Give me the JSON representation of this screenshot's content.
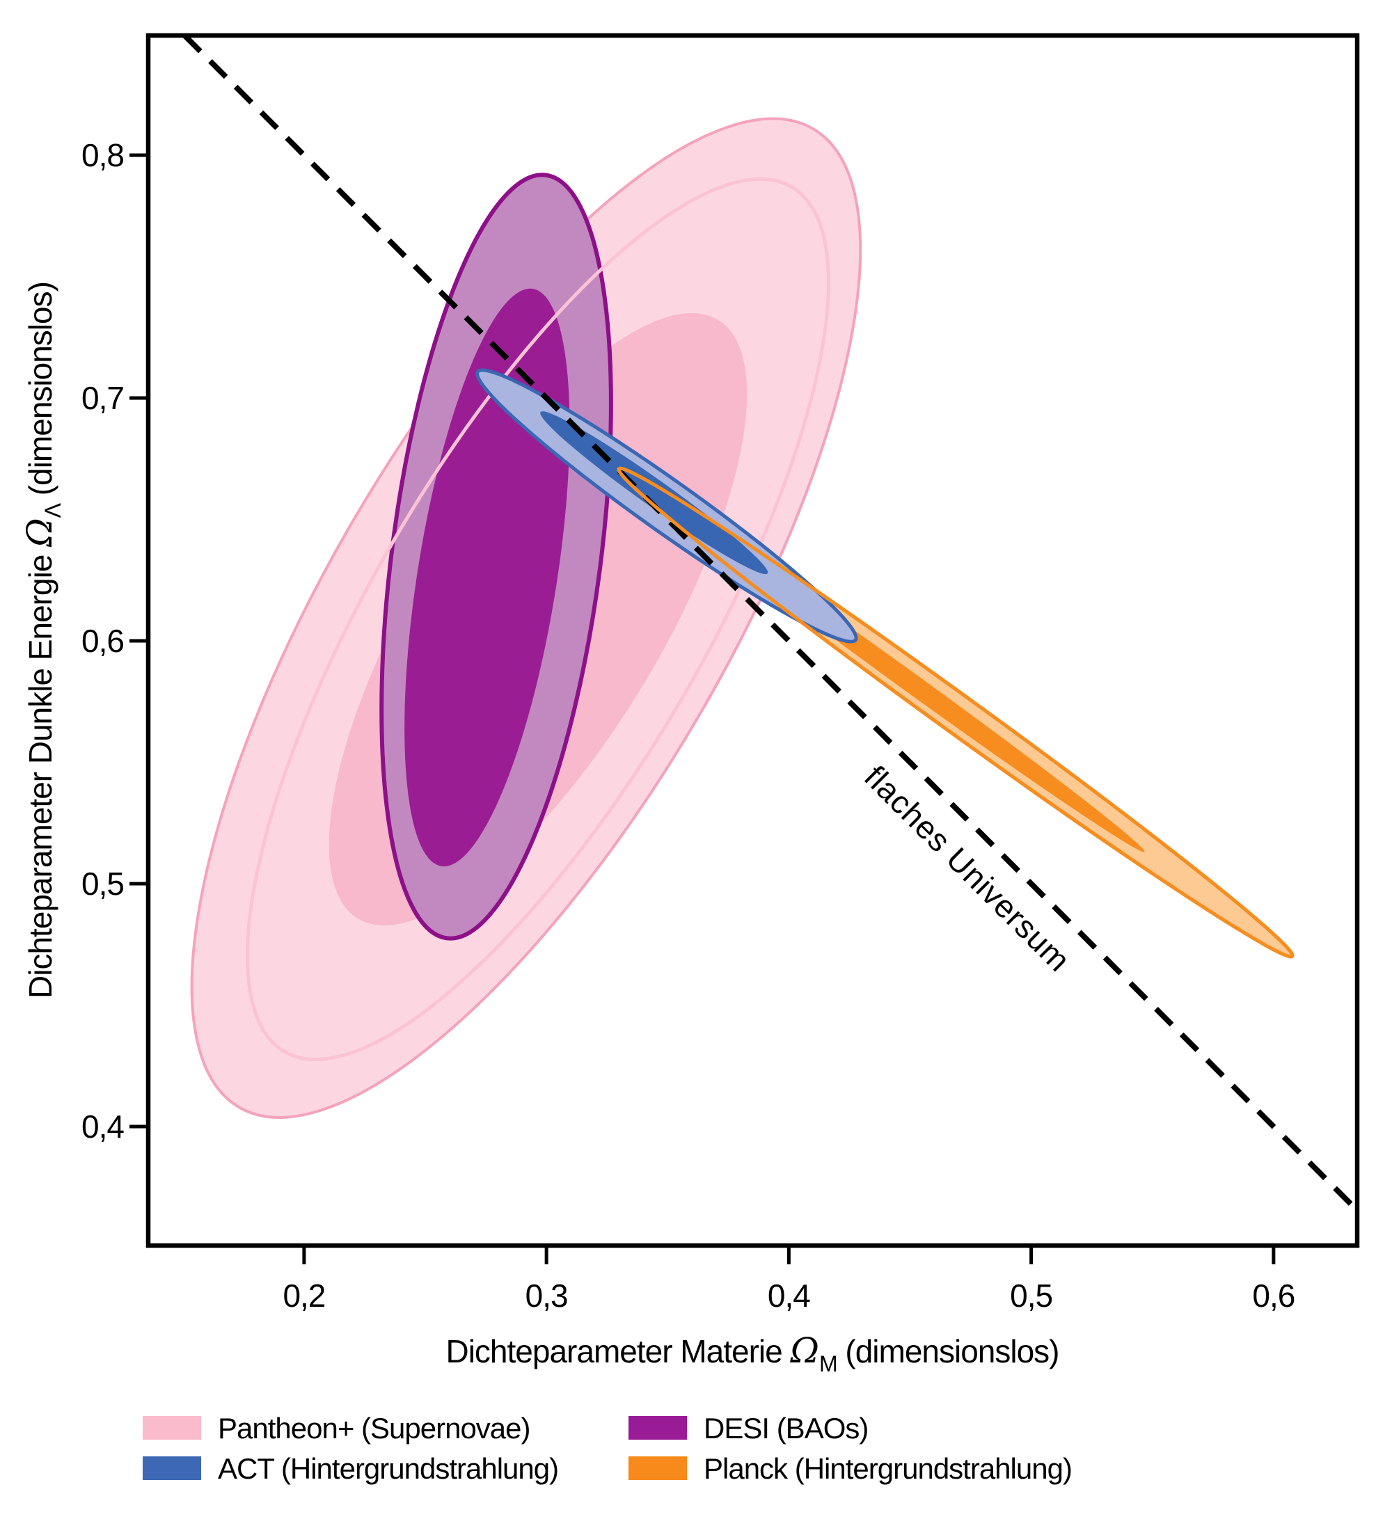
{
  "chart_data": {
    "type": "contour",
    "title": "",
    "grid": false,
    "background": "#ffffff",
    "frame_color": "#000000",
    "xlabel_parts": {
      "prefix": "Dichteparameter Materie ",
      "symbol": "Ω",
      "subscript": "M",
      "suffix": " (dimensionslos)"
    },
    "ylabel_parts": {
      "prefix": "Dichteparameter Dunkle Energie ",
      "symbol": "Ω",
      "subscript": "Λ",
      "suffix": " (dimensionslos)"
    },
    "xlim": [
      0.1357,
      0.6345
    ],
    "ylim": [
      0.351,
      0.8493
    ],
    "x_ticks": {
      "values": [
        0.2,
        0.3,
        0.4,
        0.5,
        0.6
      ],
      "labels": [
        "0,2",
        "0,3",
        "0,4",
        "0,5",
        "0,6"
      ]
    },
    "y_ticks": {
      "values": [
        0.8,
        0.7,
        0.6,
        0.5,
        0.4
      ],
      "labels": [
        "0,8",
        "0,7",
        "0,6",
        "0,5",
        "0,4"
      ]
    },
    "flat_universe_line": {
      "relation": "Omega_M + Omega_Lambda = 1",
      "label": "flaches Universum",
      "label_pos": {
        "x": 0.4705,
        "y": 0.503
      },
      "label_rotation_deg": 45,
      "color": "#000000",
      "dash_on": 32,
      "dash_off": 20,
      "width": 8
    },
    "series": [
      {
        "id": "pantheon",
        "name": "Pantheon+ (Supernovae)",
        "contours": [
          {
            "level": "outer",
            "center": [
              0.2916,
              0.6094
            ],
            "semi_major": 0.2338,
            "semi_minor": 0.0818,
            "angle_deg": 59.6,
            "fill": "#FCD7E2",
            "stroke": "#F5A2BD",
            "stroke_width": 4
          },
          {
            "level": "inner",
            "center": [
              0.2965,
              0.6089
            ],
            "semi_major": 0.144,
            "semi_minor": 0.0511,
            "angle_deg": 59.0,
            "fill": "#F8B9CC",
            "stroke": "none",
            "stroke_width": 0
          },
          {
            "level": "mid-line",
            "center": [
              0.2965,
              0.6089
            ],
            "semi_major": 0.2066,
            "semi_minor": 0.0677,
            "angle_deg": 59.6,
            "fill": "none",
            "stroke": "#FBC3D4",
            "stroke_width": 5
          }
        ]
      },
      {
        "id": "desi",
        "name": "DESI (BAOs)",
        "contours": [
          {
            "level": "outer",
            "center": [
              0.2793,
              0.6347
            ],
            "semi_major": 0.1586,
            "semi_minor": 0.043,
            "angle_deg": 82.6,
            "fill": "#C289C1",
            "stroke": "#8E1088",
            "stroke_width": 6
          },
          {
            "level": "inner",
            "center": [
              0.2755,
              0.6261
            ],
            "semi_major": 0.1205,
            "semi_minor": 0.0287,
            "angle_deg": 81.0,
            "fill": "#9B1D93",
            "stroke": "none",
            "stroke_width": 0
          }
        ]
      },
      {
        "id": "planck",
        "name": "Planck (Hintergrundstrahlung)",
        "contours": [
          {
            "level": "outer",
            "center": [
              0.4688,
              0.5705
            ],
            "semi_major": 0.1713,
            "semi_minor": 0.0078,
            "angle_deg": -35.9,
            "fill": "#FDCA93",
            "stroke": "#F68D1E",
            "stroke_width": 5
          },
          {
            "level": "inner",
            "center": [
              0.4507,
              0.5825
            ],
            "semi_major": 0.1185,
            "semi_minor": 0.004,
            "angle_deg": -35.9,
            "fill": "#F68D1E",
            "stroke": "none",
            "stroke_width": 0
          }
        ]
      },
      {
        "id": "act",
        "name": "ACT (Hintergrundstrahlung)",
        "contours": [
          {
            "level": "outer",
            "center": [
              0.3496,
              0.6556
            ],
            "semi_major": 0.0955,
            "semi_minor": 0.0106,
            "angle_deg": -35.4,
            "fill": "#A9B4DF",
            "stroke": "#3A67B4",
            "stroke_width": 5
          },
          {
            "level": "inner",
            "center": [
              0.3444,
              0.661
            ],
            "semi_major": 0.0574,
            "semi_minor": 0.0055,
            "angle_deg": -35.4,
            "fill": "#3966B3",
            "stroke": "none",
            "stroke_width": 0
          }
        ]
      }
    ]
  },
  "legend": {
    "entries": [
      {
        "label": "Pantheon+ (Supernovae)",
        "color": "#FABBCC"
      },
      {
        "label": "ACT (Hintergrundstrahlung)",
        "color": "#3C68B5"
      },
      {
        "label": "DESI (BAOs)",
        "color": "#9A1B96"
      },
      {
        "label": "Planck (Hintergrundstrahlung)",
        "color": "#F8891B"
      }
    ]
  }
}
